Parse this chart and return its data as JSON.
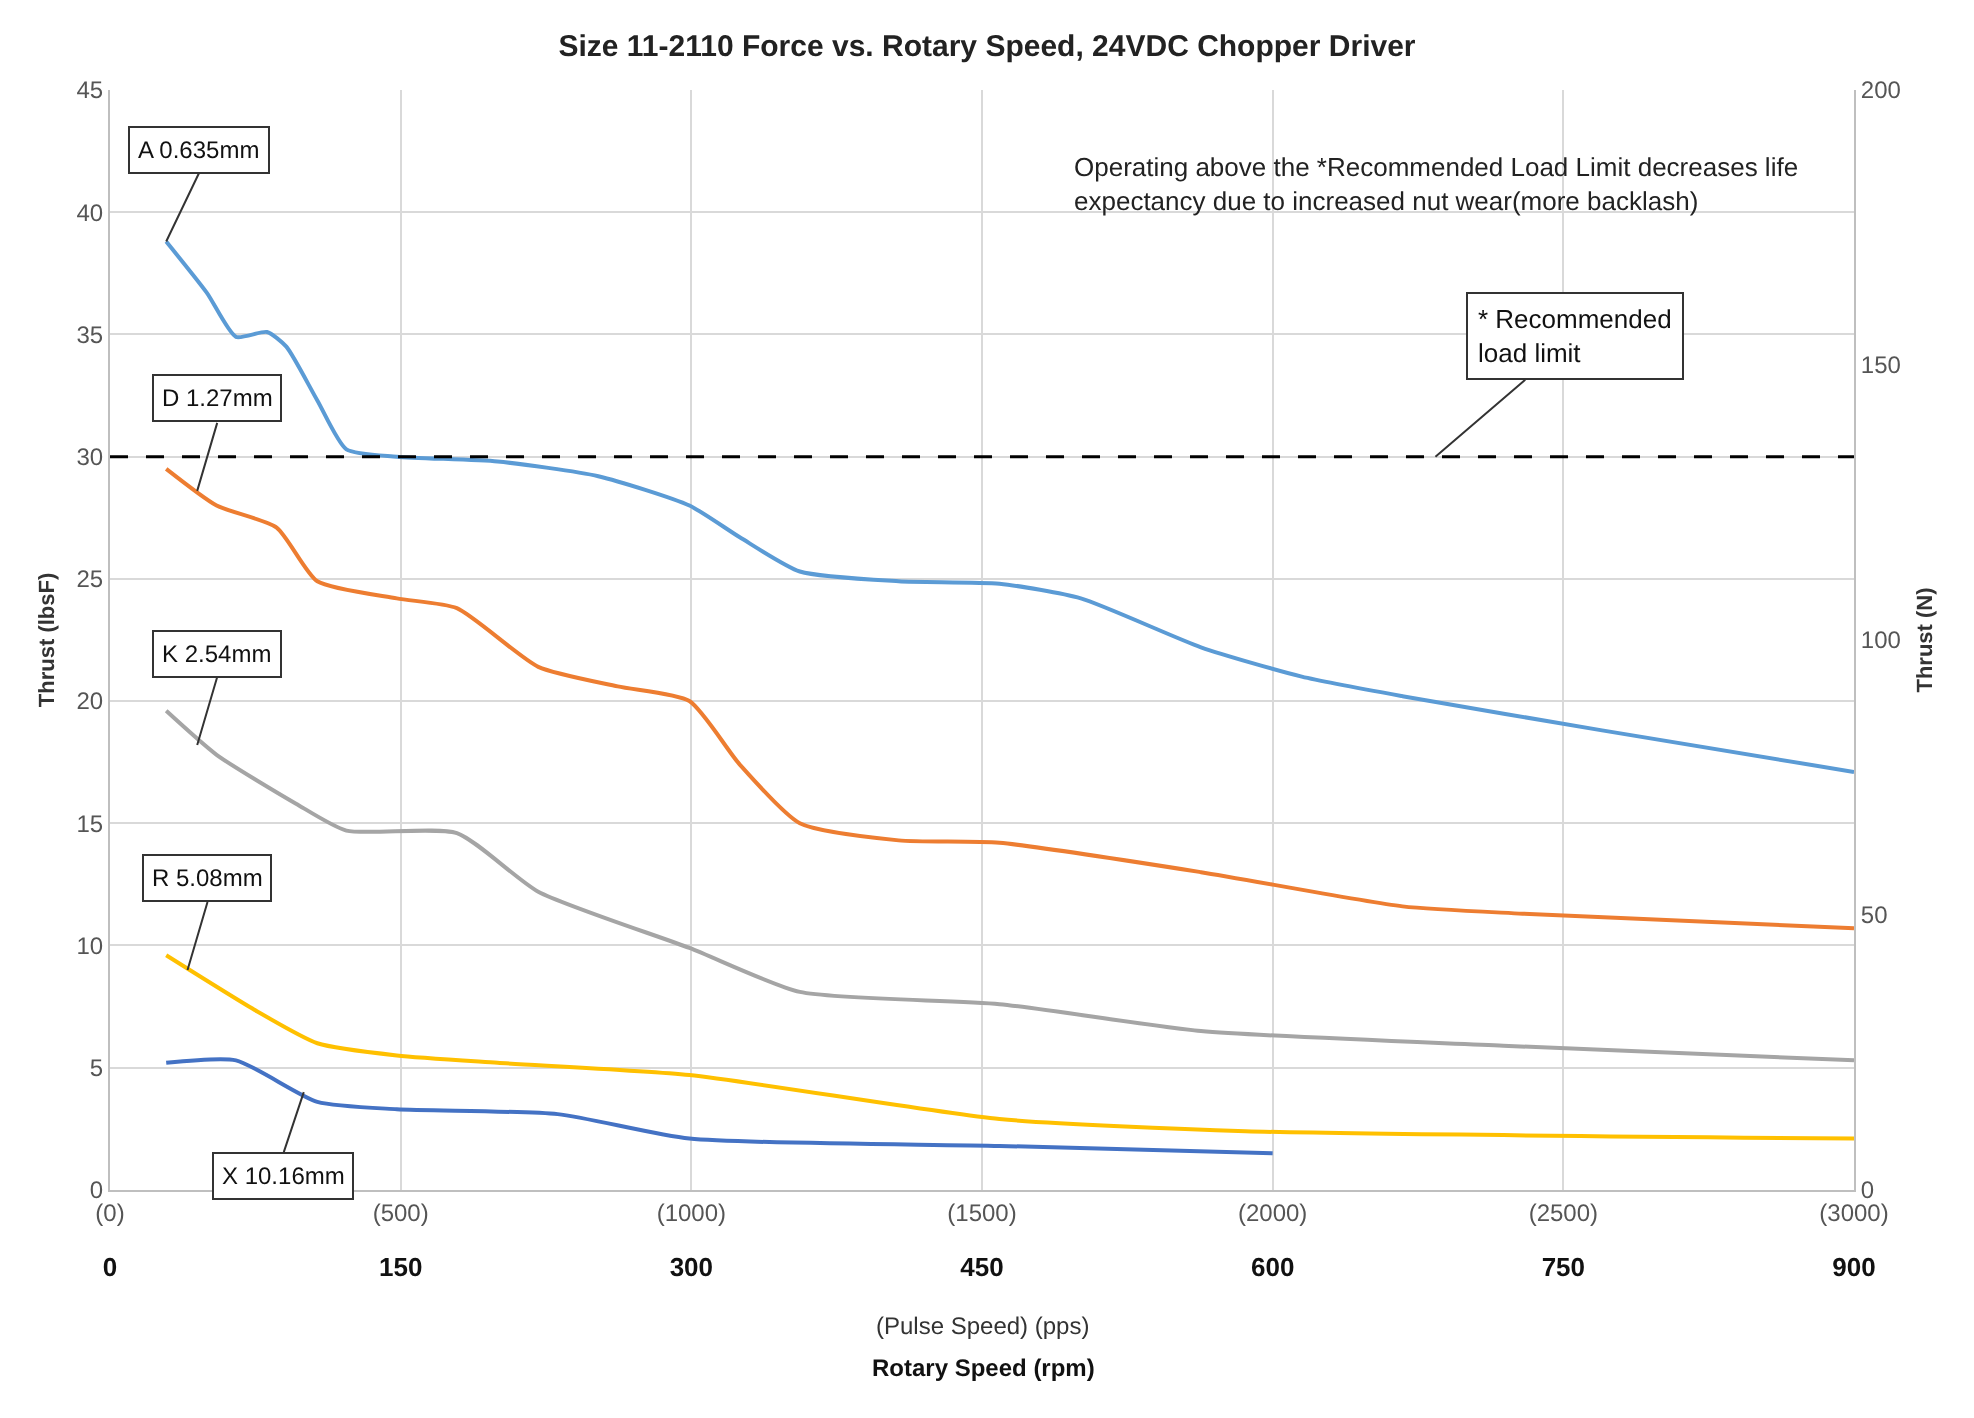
{
  "chart_data": {
    "type": "line",
    "title": "Size 11-2110 Force vs. Rotary Speed, 24VDC Chopper Driver",
    "xlabel": "Rotary Speed (rpm)",
    "x2label": "(Pulse Speed) (pps)",
    "ylabel": "Thrust (lbsF)",
    "y2label": "Thrust (N)",
    "xlim": [
      0,
      900
    ],
    "xticks": [
      0,
      150,
      300,
      450,
      600,
      750,
      900
    ],
    "x2lim": [
      0,
      3000
    ],
    "x2ticks": [
      {
        "value": 0,
        "label": "(0)"
      },
      {
        "value": 500,
        "label": "(500)"
      },
      {
        "value": 1000,
        "label": "(1000)"
      },
      {
        "value": 1500,
        "label": "(1500)"
      },
      {
        "value": 2000,
        "label": "(2000)"
      },
      {
        "value": 2500,
        "label": "(2500)"
      },
      {
        "value": 3000,
        "label": "(3000)"
      }
    ],
    "ylim": [
      0,
      45
    ],
    "yticks": [
      0,
      5,
      10,
      15,
      20,
      25,
      30,
      35,
      40,
      45
    ],
    "y2lim": [
      0,
      200
    ],
    "y2ticks": [
      0,
      50,
      100,
      150,
      200
    ],
    "grid": true,
    "legend": false,
    "marker": "none",
    "line_style": "solid",
    "series": [
      {
        "color": "#5b9bd5",
        "x": [
          29,
          50,
          65,
          81,
          91,
          107,
          122,
          148,
          200,
          252,
          299,
          325,
          356,
          407,
          459,
          501,
          563,
          615,
          667,
          770,
          900
        ],
        "values": [
          38.8,
          36.7,
          34.9,
          35.1,
          34.5,
          32.3,
          30.3,
          30.0,
          29.8,
          29.2,
          28.0,
          26.7,
          25.3,
          24.9,
          24.8,
          24.2,
          22.2,
          21.0,
          20.2,
          18.8,
          17.1
        ]
      },
      {
        "color": "#ed7d31",
        "x": [
          29,
          55,
          86,
          107,
          148,
          179,
          221,
          262,
          299,
          325,
          356,
          407,
          459,
          563,
          667,
          729,
          900
        ],
        "values": [
          29.5,
          28.0,
          27.1,
          24.9,
          24.2,
          23.8,
          21.4,
          20.6,
          20.0,
          17.4,
          15.0,
          14.3,
          14.2,
          13.0,
          11.6,
          11.3,
          10.7
        ]
      },
      {
        "color": "#a5a5a5",
        "x": [
          29,
          55,
          96,
          122,
          179,
          221,
          299,
          356,
          459,
          563,
          719,
          900
        ],
        "values": [
          19.6,
          17.8,
          15.8,
          14.7,
          14.6,
          12.2,
          9.9,
          8.1,
          7.6,
          6.5,
          5.9,
          5.3
        ]
      },
      {
        "color": "#ffc000",
        "x": [
          29,
          76,
          107,
          148,
          200,
          299,
          459,
          586,
          900
        ],
        "values": [
          9.6,
          7.3,
          6.0,
          5.5,
          5.2,
          4.7,
          2.9,
          2.4,
          2.1
        ]
      },
      {
        "color": "#4472c4",
        "x": [
          29,
          65,
          107,
          148,
          231,
          299,
          459,
          600
        ],
        "values": [
          5.2,
          5.3,
          3.6,
          3.3,
          3.1,
          2.1,
          1.8,
          1.5
        ]
      }
    ],
    "ref_lines": [
      {
        "axis": "y",
        "value": 30,
        "label": "* Recommended\nload limit",
        "color": "#000000",
        "line_style": "dashed"
      }
    ],
    "annotations": [
      {
        "text": "A 0.635mm",
        "x": 29,
        "y": 38.8
      },
      {
        "text": "D 1.27mm",
        "x": 45,
        "y": 28.6
      },
      {
        "text": "K 2.54mm",
        "x": 45,
        "y": 18.2
      },
      {
        "text": "R 5.08mm",
        "x": 40,
        "y": 9.0
      },
      {
        "text": "X 10.16mm",
        "x": 100,
        "y": 4.0
      },
      "Operating above the *Recommended Load Limit decreases life\nexpectancy due to increased nut wear(more backlash)"
    ]
  }
}
